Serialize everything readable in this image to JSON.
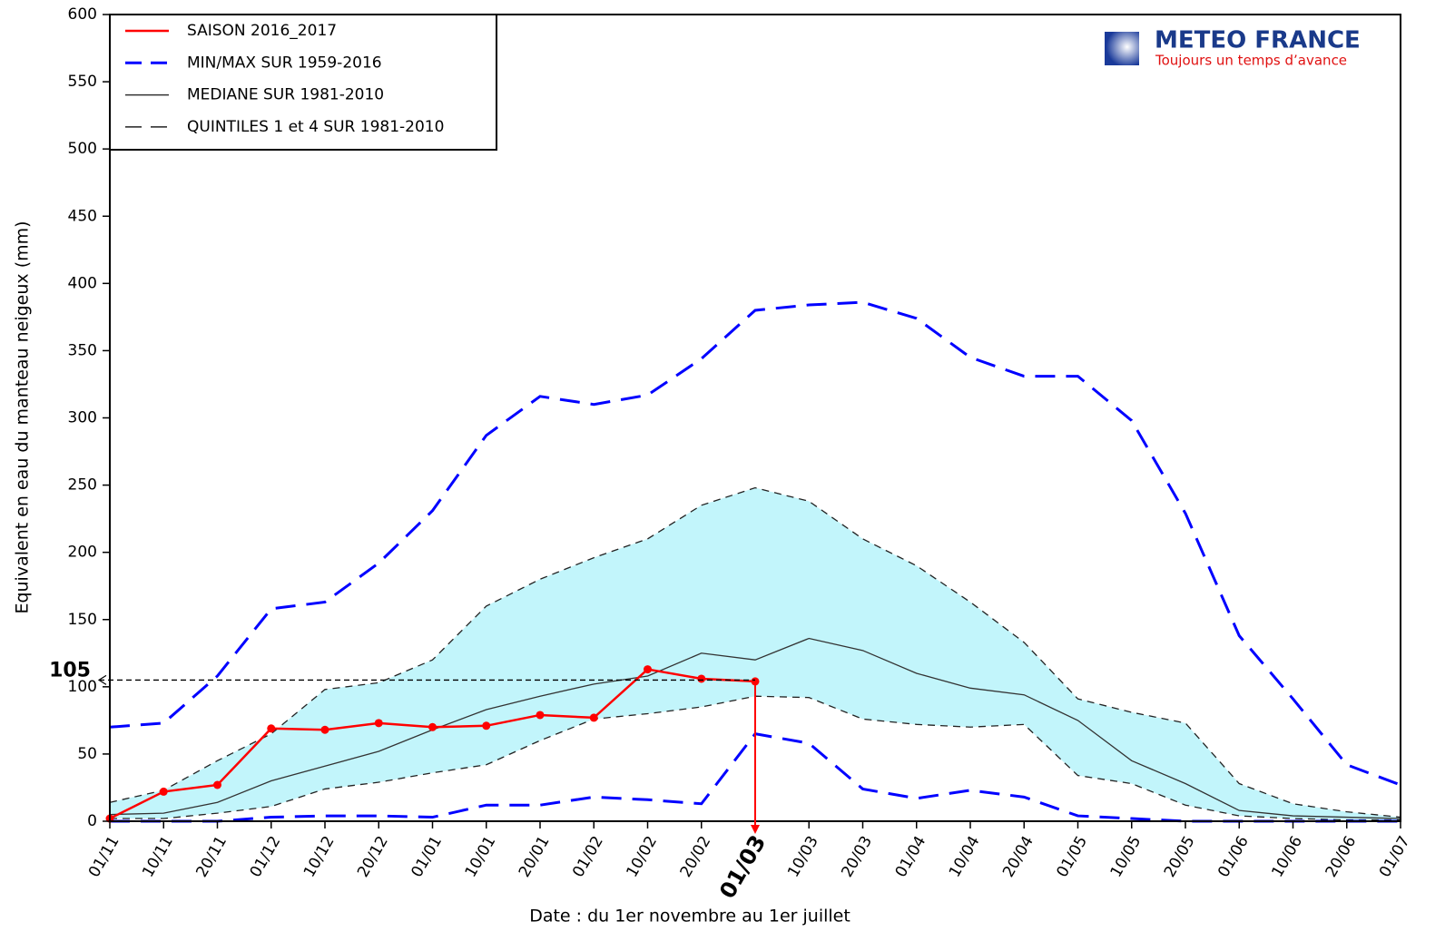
{
  "chart_data": {
    "type": "line",
    "xlabel": "Date : du 1er novembre au 1er juillet",
    "ylabel": "Equivalent en eau du manteau neigeux (mm)",
    "logo": {
      "name": "METEO FRANCE",
      "slogan": "Toujours un temps d’avance"
    },
    "categories": [
      "01/11",
      "10/11",
      "20/11",
      "01/12",
      "10/12",
      "20/12",
      "01/01",
      "10/01",
      "20/01",
      "01/02",
      "10/02",
      "20/02",
      "01/03",
      "10/03",
      "20/03",
      "01/04",
      "10/04",
      "20/04",
      "01/05",
      "10/05",
      "20/05",
      "01/06",
      "10/06",
      "20/06",
      "01/07"
    ],
    "ylim": [
      0,
      600
    ],
    "yticks": [
      0,
      50,
      100,
      150,
      200,
      250,
      300,
      350,
      400,
      450,
      500,
      550,
      600
    ],
    "annotation": 105,
    "legend": "upper left",
    "series": [
      {
        "name": "SAISON 2016_2017",
        "color": "#ff0000",
        "line_style": "solid",
        "markers": true,
        "values": [
          2,
          22,
          27,
          69,
          68,
          73,
          70,
          71,
          79,
          77,
          113,
          106,
          104,
          null,
          null,
          null,
          null,
          null,
          null,
          null,
          null,
          null,
          null,
          null,
          null
        ]
      },
      {
        "name": "MIN/MAX SUR 1959-2016",
        "color": "#0000ff",
        "line_style": "dashed",
        "lower": [
          0,
          0,
          0,
          3,
          4,
          4,
          3,
          12,
          12,
          18,
          16,
          13,
          65,
          58,
          24,
          17,
          23,
          18,
          4,
          2,
          0,
          0,
          0,
          0,
          0
        ],
        "upper": [
          70,
          73,
          108,
          158,
          163,
          192,
          231,
          287,
          316,
          310,
          317,
          344,
          380,
          384,
          386,
          374,
          345,
          331,
          331,
          298,
          229,
          138,
          91,
          42,
          27
        ]
      },
      {
        "name": "MEDIANE SUR 1981-2010",
        "color": "#333333",
        "line_style": "solid",
        "values": [
          5,
          6,
          14,
          30,
          41,
          52,
          68,
          83,
          93,
          102,
          108,
          125,
          120,
          136,
          127,
          110,
          99,
          94,
          75,
          45,
          28,
          8,
          4,
          3,
          2
        ]
      },
      {
        "name": "QUINTILES 1 et 4 SUR 1981-2010",
        "color": "#222222",
        "line_style": "short-dashed",
        "fill": "#c2f5fb",
        "lower": [
          2,
          2,
          6,
          11,
          24,
          29,
          36,
          42,
          60,
          76,
          80,
          85,
          93,
          92,
          76,
          72,
          70,
          72,
          34,
          28,
          12,
          4,
          2,
          1,
          1
        ],
        "upper": [
          14,
          23,
          45,
          65,
          98,
          103,
          120,
          160,
          180,
          196,
          210,
          235,
          248,
          238,
          210,
          190,
          163,
          133,
          91,
          81,
          73,
          28,
          13,
          7,
          3
        ]
      }
    ]
  }
}
